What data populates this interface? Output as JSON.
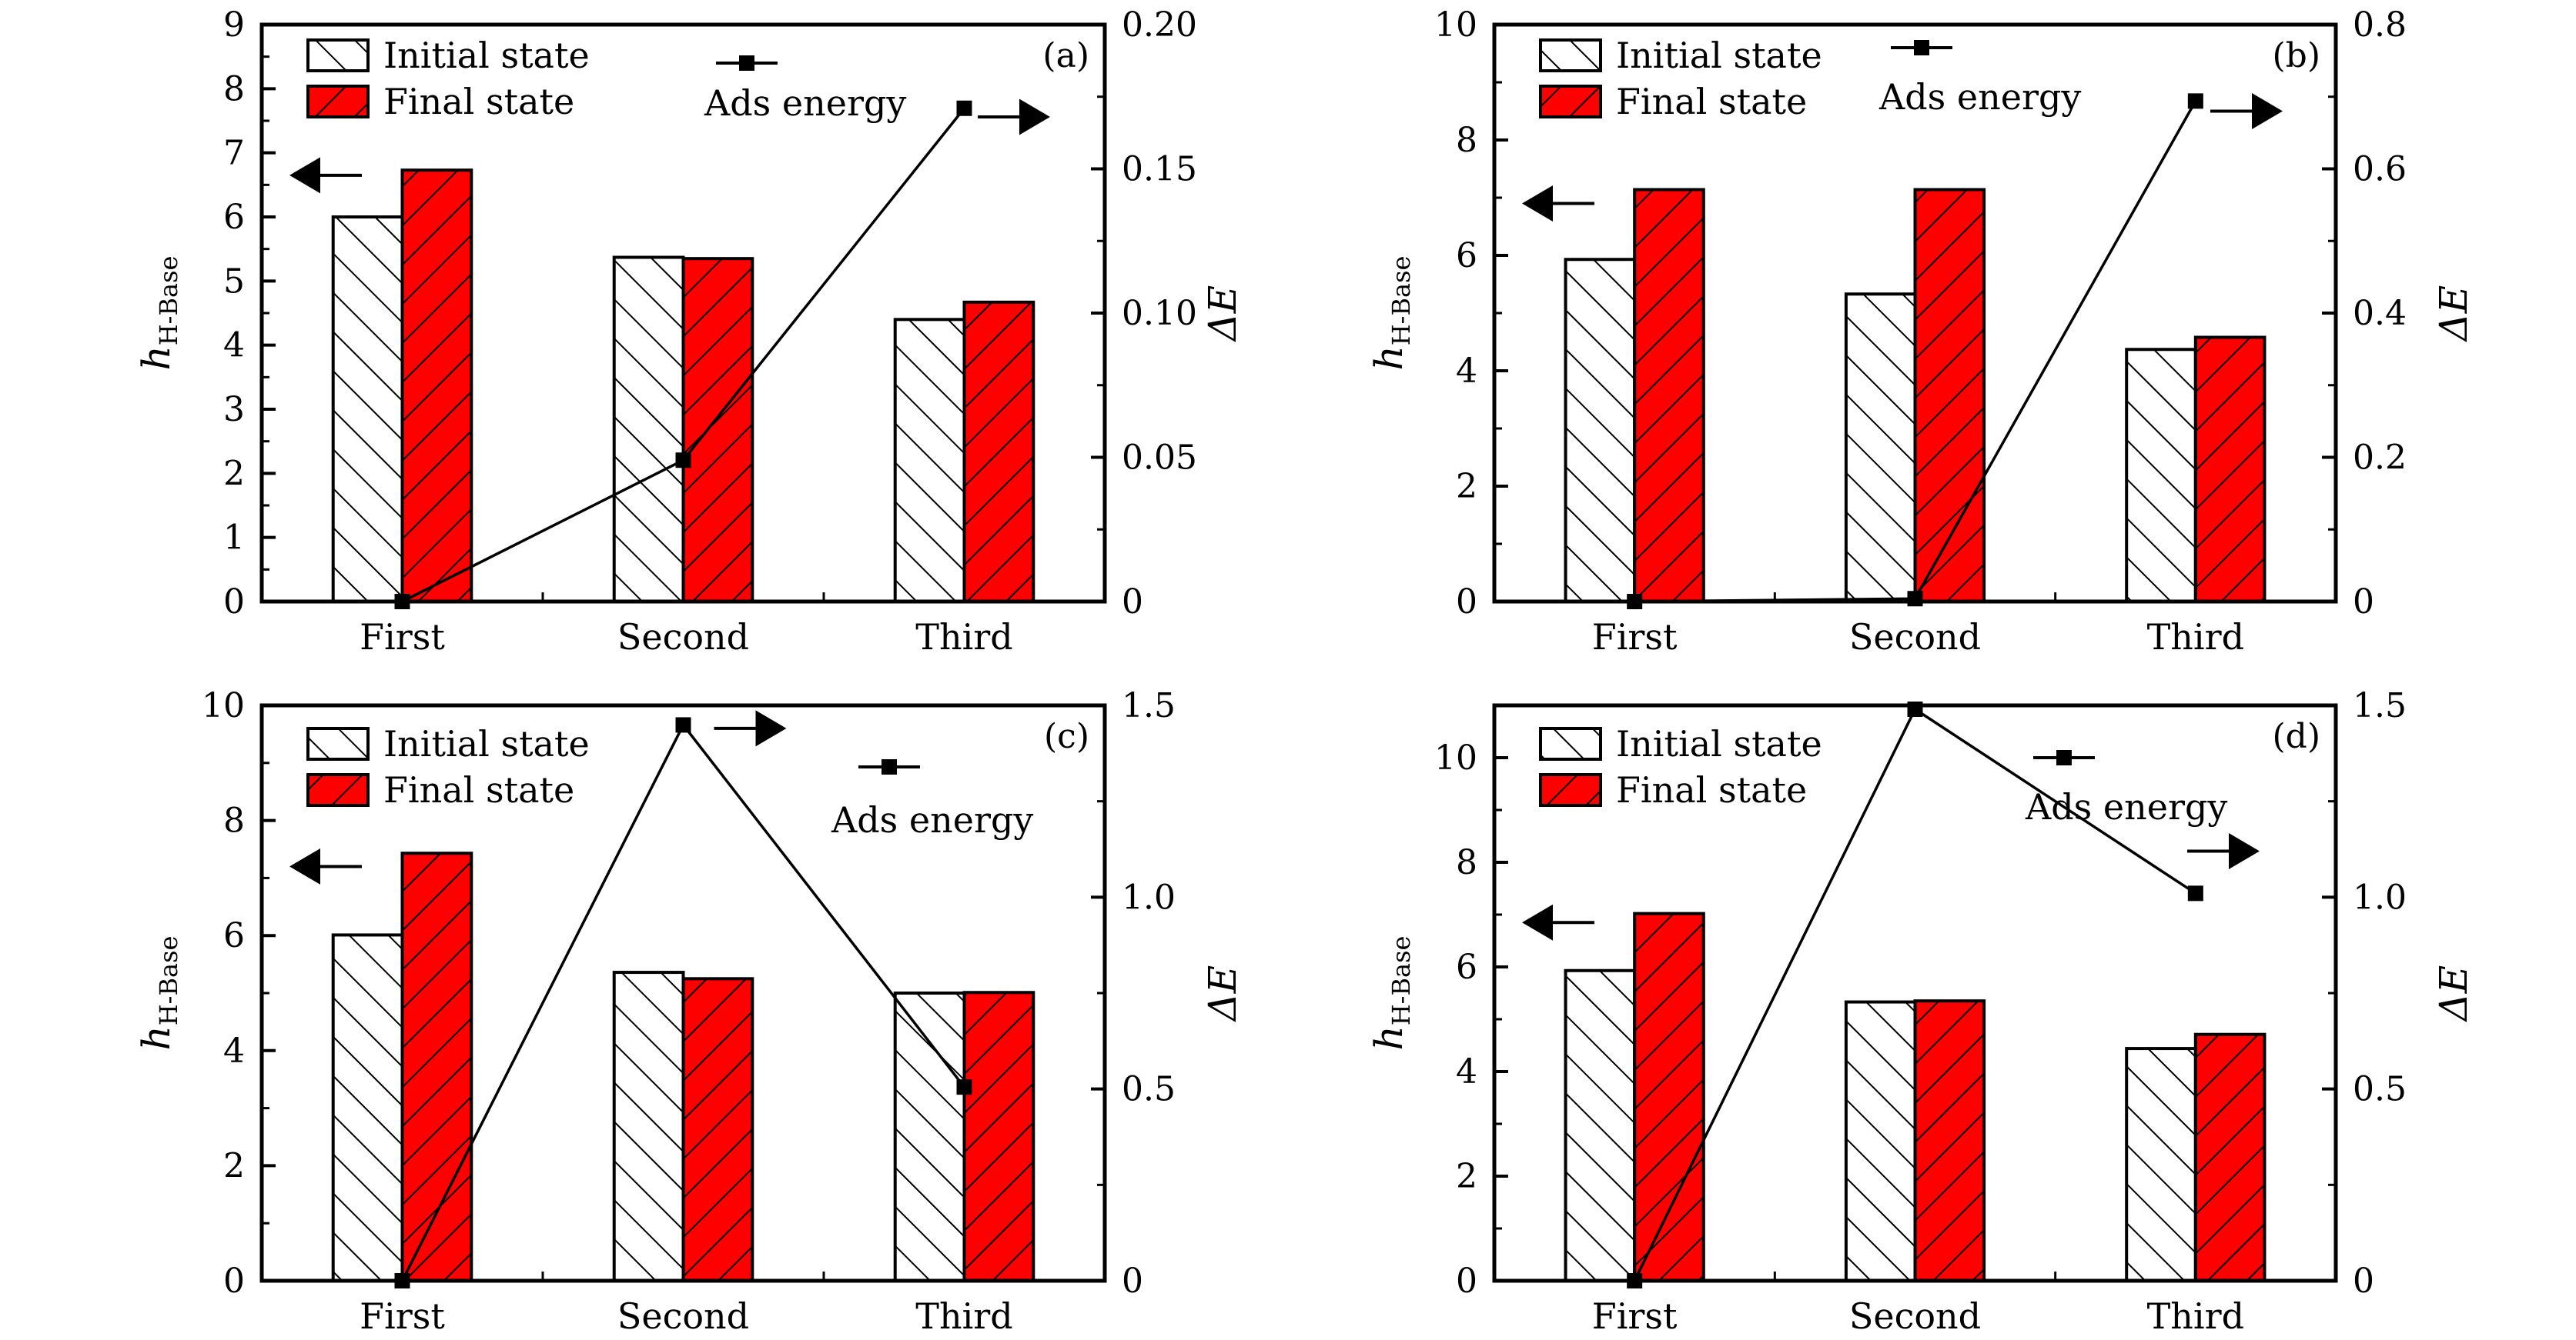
{
  "chart_data": [
    {
      "type": "bar",
      "panel_label": "(a)",
      "categories": [
        "First",
        "Second",
        "Third"
      ],
      "series": [
        {
          "name": "Initial state",
          "kind": "bar",
          "axis": "left",
          "fill": "#ffffff",
          "hatch": "backslash",
          "values": [
            6.0,
            5.37,
            4.4
          ]
        },
        {
          "name": "Final state",
          "kind": "bar",
          "axis": "left",
          "fill": "#ff0000",
          "hatch": "slash",
          "values": [
            6.73,
            5.35,
            4.67
          ]
        },
        {
          "name": "Ads energy",
          "kind": "line",
          "axis": "right",
          "marker": "square",
          "values": [
            0.0,
            0.049,
            0.171
          ]
        }
      ],
      "ylabel": "h",
      "ylabel_sub": "H-Base",
      "y2label": "ΔE",
      "ylim": [
        0,
        9
      ],
      "y_ticks": [
        0,
        1,
        2,
        3,
        4,
        5,
        6,
        7,
        8,
        9
      ],
      "y_minor_step": 0.5,
      "y2lim": [
        0,
        0.2
      ],
      "y2_ticks": [
        0,
        0.05,
        0.1,
        0.15,
        0.2
      ],
      "y2_tick_labels": [
        "0",
        "0.05",
        "0.10",
        "0.15",
        "0.20"
      ],
      "y2_minor_step": 0.025,
      "arrows": {
        "left_at_value": 6.65,
        "right_at_value2": 0.168
      },
      "legend_position": "top"
    },
    {
      "type": "bar",
      "panel_label": "(b)",
      "categories": [
        "First",
        "Second",
        "Third"
      ],
      "series": [
        {
          "name": "Initial state",
          "kind": "bar",
          "axis": "left",
          "fill": "#ffffff",
          "hatch": "backslash",
          "values": [
            5.93,
            5.33,
            4.37
          ]
        },
        {
          "name": "Final state",
          "kind": "bar",
          "axis": "left",
          "fill": "#ff0000",
          "hatch": "slash",
          "values": [
            7.14,
            7.14,
            4.58
          ]
        },
        {
          "name": "Ads energy",
          "kind": "line",
          "axis": "right",
          "marker": "square",
          "values": [
            0.0,
            0.004,
            0.694
          ]
        }
      ],
      "ylabel": "h",
      "ylabel_sub": "H-Base",
      "y2label": "ΔE",
      "ylim": [
        0,
        10
      ],
      "y_ticks": [
        0,
        2,
        4,
        6,
        8,
        10
      ],
      "y_minor_step": 1,
      "y2lim": [
        0,
        0.8
      ],
      "y2_ticks": [
        0,
        0.2,
        0.4,
        0.6,
        0.8
      ],
      "y2_tick_labels": [
        "0",
        "0.2",
        "0.4",
        "0.6",
        "0.8"
      ],
      "y2_minor_step": 0.1,
      "arrows": {
        "left_at_value": 6.9,
        "right_at_value2": 0.68
      },
      "legend_position": "top"
    },
    {
      "type": "bar",
      "panel_label": "(c)",
      "categories": [
        "First",
        "Second",
        "Third"
      ],
      "series": [
        {
          "name": "Initial state",
          "kind": "bar",
          "axis": "left",
          "fill": "#ffffff",
          "hatch": "backslash",
          "values": [
            6.01,
            5.36,
            5.0
          ]
        },
        {
          "name": "Final state",
          "kind": "bar",
          "axis": "left",
          "fill": "#ff0000",
          "hatch": "slash",
          "values": [
            7.43,
            5.25,
            5.01
          ]
        },
        {
          "name": "Ads energy",
          "kind": "line",
          "axis": "right",
          "marker": "square",
          "values": [
            0.0,
            1.449,
            0.505
          ]
        }
      ],
      "ylabel": "h",
      "ylabel_sub": "H-Base",
      "y2label": "ΔE",
      "ylim": [
        0,
        10
      ],
      "y_ticks": [
        0,
        2,
        4,
        6,
        8,
        10
      ],
      "y_minor_step": 1,
      "y2lim": [
        0,
        1.5
      ],
      "y2_ticks": [
        0,
        0.5,
        1.0,
        1.5
      ],
      "y2_tick_labels": [
        "0",
        "0.5",
        "1.0",
        "1.5"
      ],
      "y2_minor_step": 0.25,
      "arrows": {
        "left_at_value": 7.2,
        "right_at_value2": 1.44
      },
      "legend_position": "top"
    },
    {
      "type": "bar",
      "panel_label": "(d)",
      "categories": [
        "First",
        "Second",
        "Third"
      ],
      "series": [
        {
          "name": "Initial state",
          "kind": "bar",
          "axis": "left",
          "fill": "#ffffff",
          "hatch": "backslash",
          "values": [
            5.93,
            5.33,
            4.44
          ]
        },
        {
          "name": "Final state",
          "kind": "bar",
          "axis": "left",
          "fill": "#ff0000",
          "hatch": "slash",
          "values": [
            7.02,
            5.35,
            4.71
          ]
        },
        {
          "name": "Ads energy",
          "kind": "line",
          "axis": "right",
          "marker": "square",
          "values": [
            0.0,
            1.49,
            1.01
          ]
        }
      ],
      "ylabel": "h",
      "ylabel_sub": "H-Base",
      "y2label": "ΔE",
      "ylim": [
        0,
        11
      ],
      "y_ticks": [
        0,
        2,
        4,
        6,
        8,
        10
      ],
      "y_minor_step": 1,
      "y2lim": [
        0,
        1.5
      ],
      "y2_ticks": [
        0,
        0.5,
        1.0,
        1.5
      ],
      "y2_tick_labels": [
        "0",
        "0.5",
        "1.0",
        "1.5"
      ],
      "y2_minor_step": 0.25,
      "arrows": {
        "left_at_value": 6.85,
        "right_at_value2": 1.12
      },
      "legend_position": "top"
    }
  ]
}
